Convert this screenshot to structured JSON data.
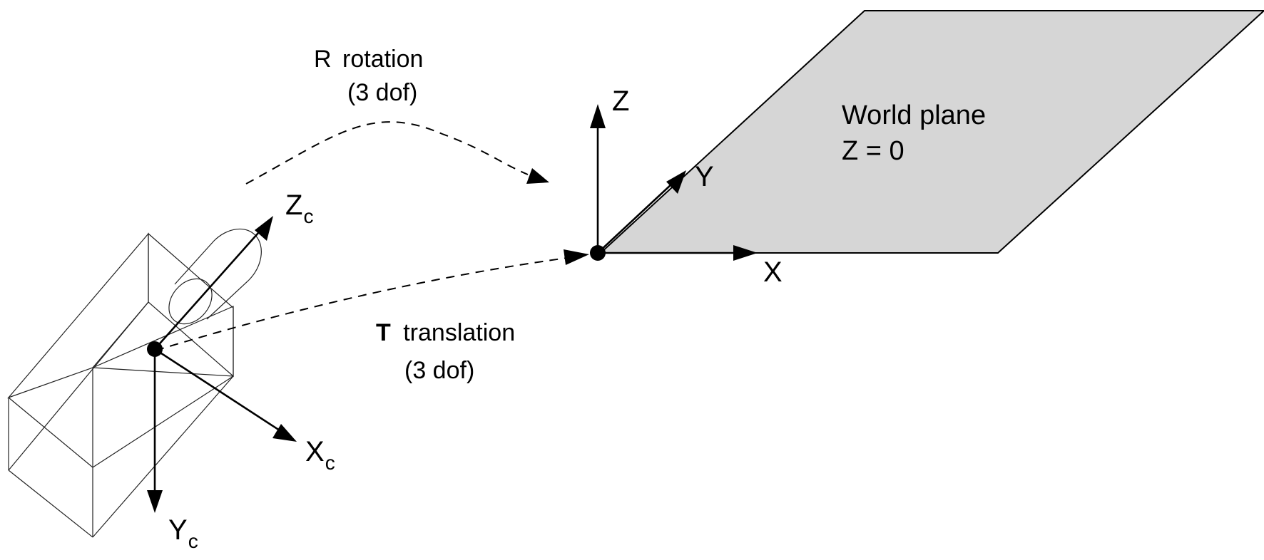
{
  "rotation": {
    "symbol": "R",
    "label": "rotation",
    "dof": "(3 dof)"
  },
  "translation": {
    "symbol": "T",
    "label": "translation",
    "dof": "(3 dof)"
  },
  "world_plane": {
    "title": "World plane",
    "equation": "Z = 0"
  },
  "world_axes": {
    "x": "X",
    "y": "Y",
    "z": "Z"
  },
  "camera_axes": {
    "x": "X",
    "y": "Y",
    "z": "Z",
    "subscript": "c"
  },
  "colors": {
    "plane_fill": "#d6d6d6",
    "ink": "#000000"
  }
}
